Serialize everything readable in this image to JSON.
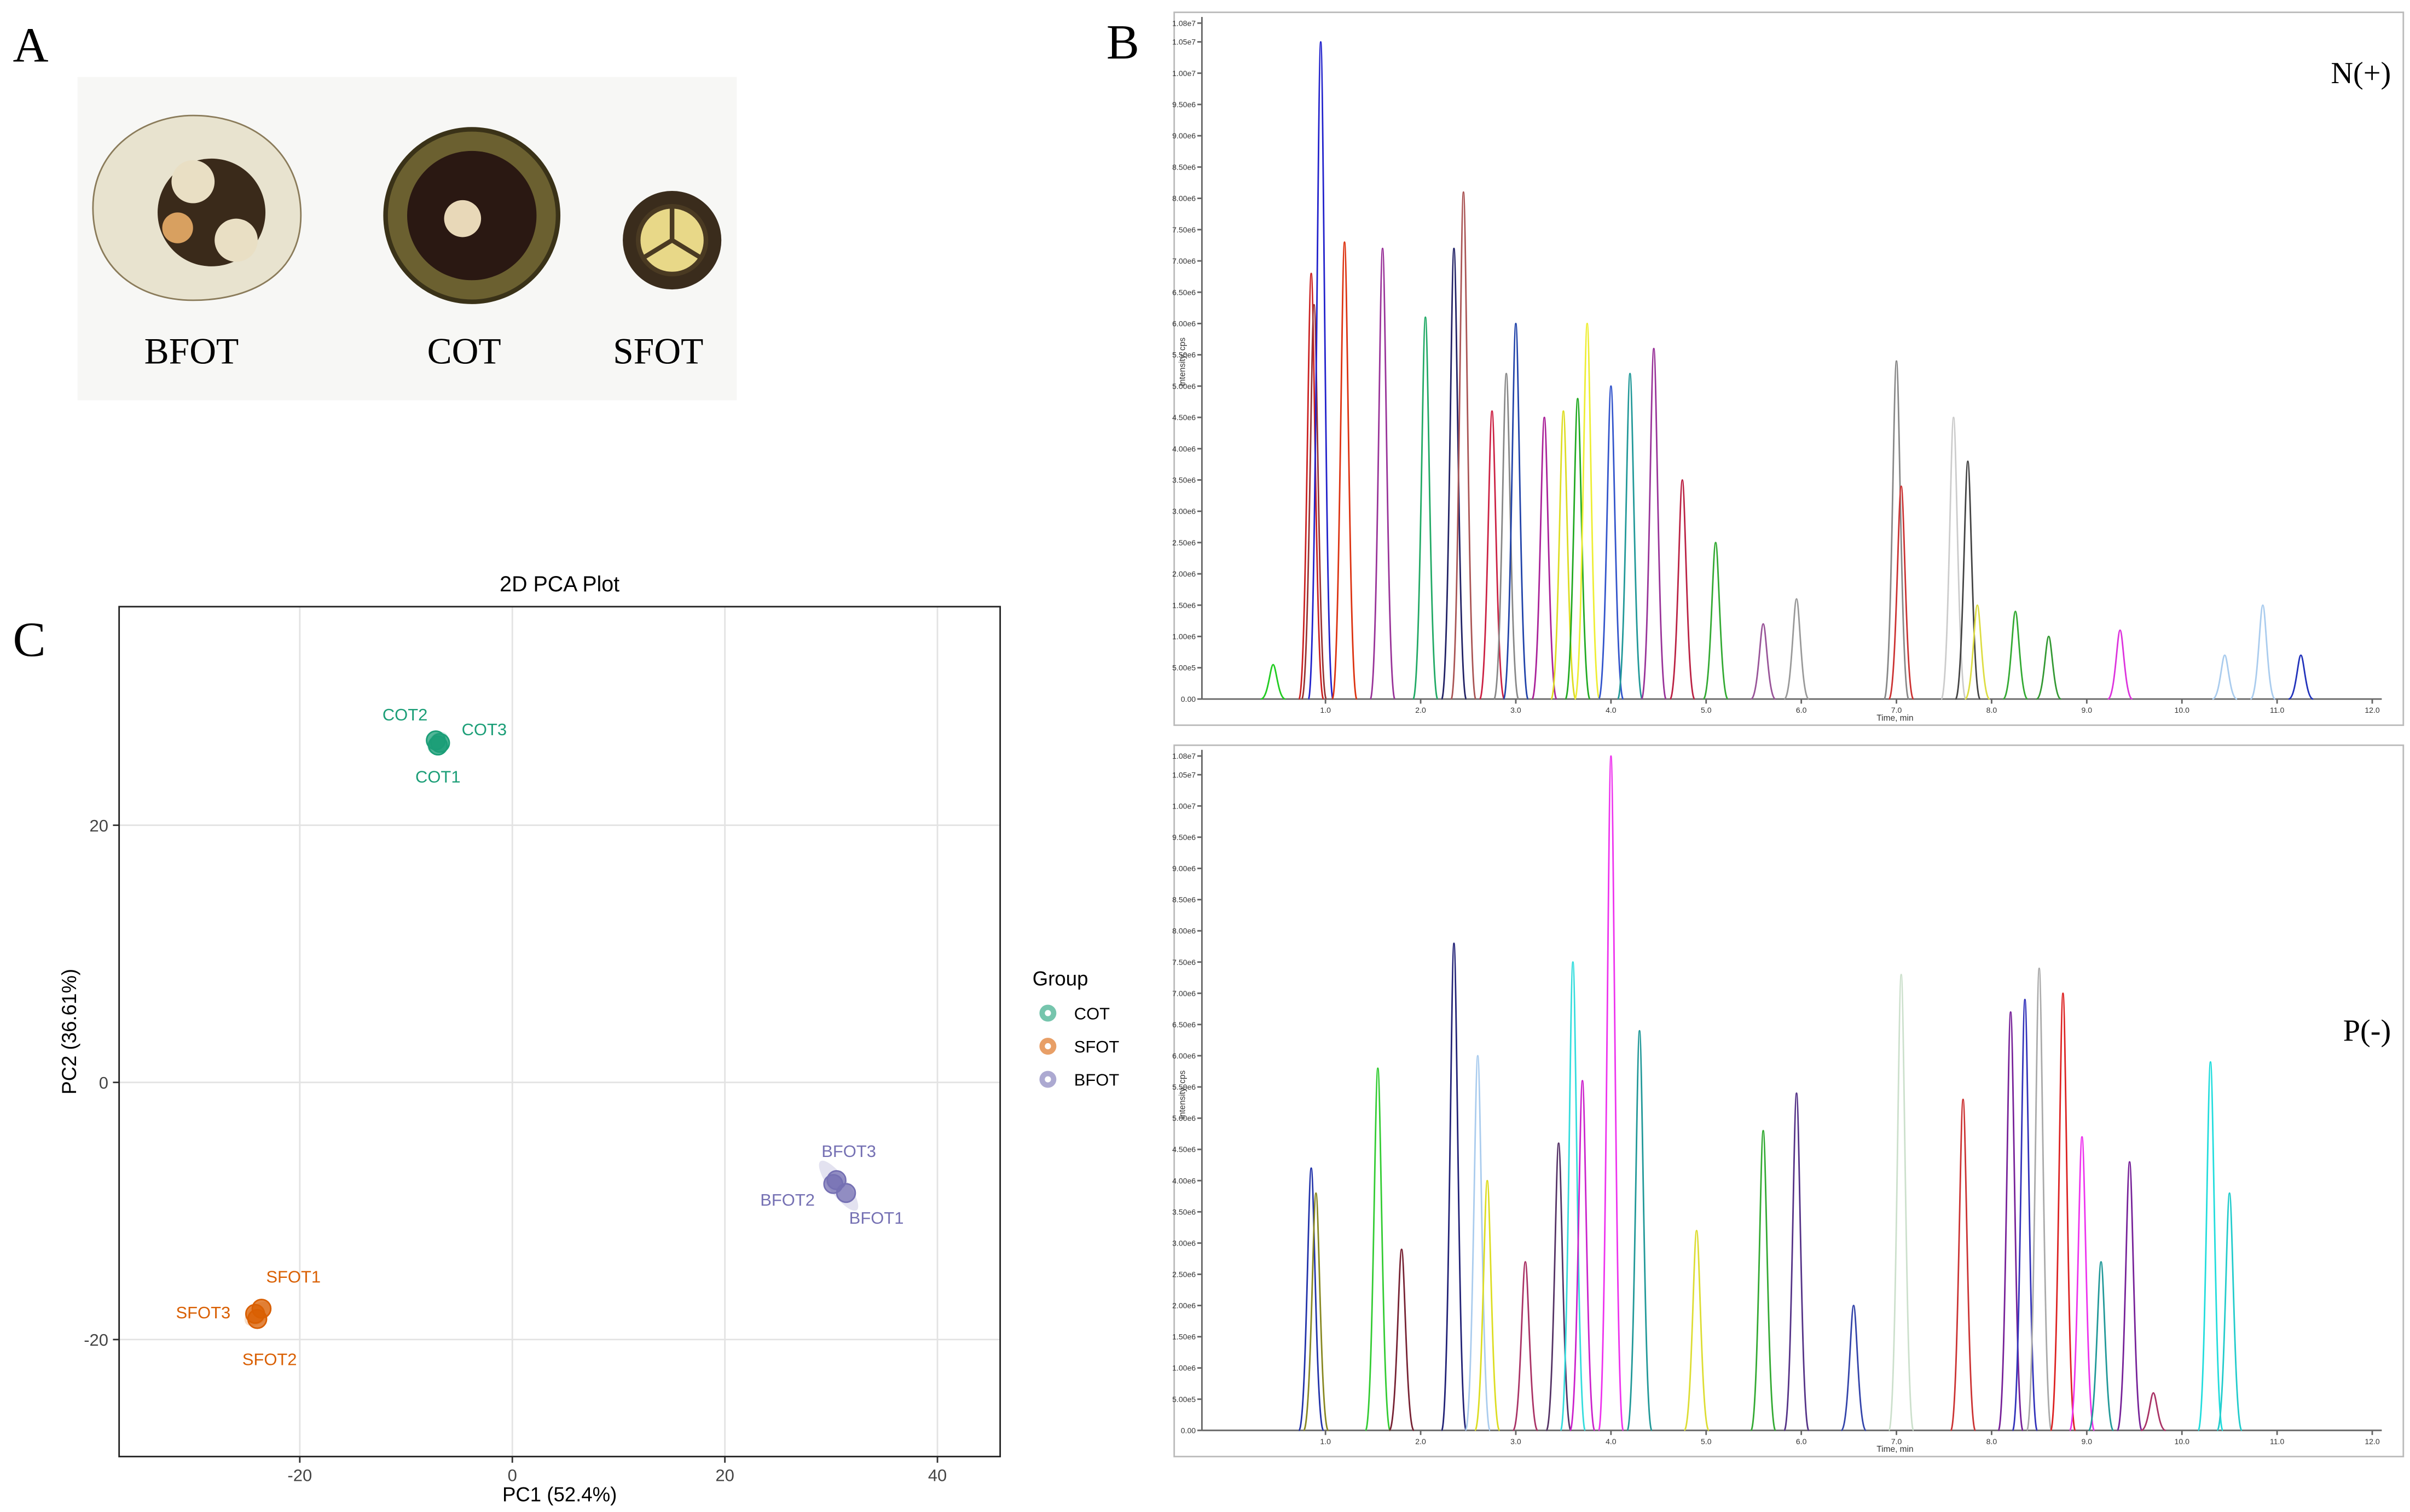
{
  "panels": {
    "a": "A",
    "b": "B",
    "c": "C"
  },
  "photos": {
    "labels": [
      "BFOT",
      "COT",
      "SFOT"
    ]
  },
  "chart_data": [
    {
      "type": "scatter",
      "title": "2D PCA Plot",
      "xlabel": "PC1 (52.4%)",
      "ylabel": "PC2 (36.61%)",
      "xlim": [
        -37,
        45.9
      ],
      "ylim": [
        -29.1,
        37
      ],
      "xticks": [
        -20,
        0,
        20,
        40
      ],
      "yticks": [
        -20,
        0,
        20
      ],
      "grid": true,
      "legend_title": "Group",
      "legend": "right",
      "series": [
        {
          "name": "COT",
          "color": "#1b9e77",
          "x": [
            -7.0,
            -7.2,
            -6.8
          ],
          "values": [
            26.2,
            26.6,
            26.4
          ],
          "point_labels": [
            "COT1",
            "COT2",
            "COT3"
          ]
        },
        {
          "name": "SFOT",
          "color": "#d95f02",
          "x": [
            -23.6,
            -24.0,
            -24.2
          ],
          "values": [
            -17.6,
            -18.4,
            -18.0
          ],
          "point_labels": [
            "SFOT1",
            "SFOT2",
            "SFOT3"
          ]
        },
        {
          "name": "BFOT",
          "color": "#7570b3",
          "x": [
            31.4,
            30.2,
            30.5
          ],
          "values": [
            -8.6,
            -7.9,
            -7.6
          ],
          "point_labels": [
            "BFOT1",
            "BFOT2",
            "BFOT3"
          ]
        }
      ]
    },
    {
      "type": "peaks",
      "annotation": "N(+)",
      "xlabel": "Time, min",
      "ylabel": "Intensity, cps",
      "xlim": [
        -0.25,
        12.1
      ],
      "ylim": [
        0,
        10800000
      ],
      "xticks": [
        {
          "value": 1,
          "label": "1.0"
        },
        {
          "value": 2,
          "label": "2.0"
        },
        {
          "value": 3,
          "label": "3.0"
        },
        {
          "value": 4,
          "label": "4.0"
        },
        {
          "value": 5,
          "label": "5.0"
        },
        {
          "value": 6,
          "label": "6.0"
        },
        {
          "value": 7,
          "label": "7.0"
        },
        {
          "value": 8,
          "label": "8.0"
        },
        {
          "value": 9,
          "label": "9.0"
        },
        {
          "value": 10,
          "label": "10.0"
        },
        {
          "value": 11,
          "label": "11.0"
        },
        {
          "value": 12,
          "label": "12.0"
        }
      ],
      "yticks": [
        {
          "value": 0,
          "label": "0.00"
        },
        {
          "value": 500000,
          "label": "5.00e5"
        },
        {
          "value": 1000000,
          "label": "1.00e6"
        },
        {
          "value": 1500000,
          "label": "1.50e6"
        },
        {
          "value": 2000000,
          "label": "2.00e6"
        },
        {
          "value": 2500000,
          "label": "2.50e6"
        },
        {
          "value": 3000000,
          "label": "3.00e6"
        },
        {
          "value": 3500000,
          "label": "3.50e6"
        },
        {
          "value": 4000000,
          "label": "4.00e6"
        },
        {
          "value": 4500000,
          "label": "4.50e6"
        },
        {
          "value": 5000000,
          "label": "5.00e6"
        },
        {
          "value": 5500000,
          "label": "5.50e6"
        },
        {
          "value": 6000000,
          "label": "6.00e6"
        },
        {
          "value": 6500000,
          "label": "6.50e6"
        },
        {
          "value": 7000000,
          "label": "7.00e6"
        },
        {
          "value": 7500000,
          "label": "7.50e6"
        },
        {
          "value": 8000000,
          "label": "8.00e6"
        },
        {
          "value": 8500000,
          "label": "8.50e6"
        },
        {
          "value": 9000000,
          "label": "9.00e6"
        },
        {
          "value": 9500000,
          "label": "9.50e6"
        },
        {
          "value": 10000000,
          "label": "1.00e7"
        },
        {
          "value": 10500000,
          "label": "1.05e7"
        },
        {
          "value": 10800000,
          "label": "1.08e7"
        }
      ],
      "x": [
        0.45,
        0.85,
        0.88,
        0.95,
        1.2,
        1.6,
        2.05,
        2.35,
        2.45,
        2.75,
        2.9,
        3.0,
        3.3,
        3.5,
        3.65,
        3.75,
        4.0,
        4.2,
        4.45,
        4.75,
        5.1,
        5.6,
        5.95,
        7.0,
        7.05,
        7.6,
        7.75,
        7.85,
        8.25,
        8.6,
        9.35,
        10.45,
        10.85,
        11.25
      ],
      "values": [
        550000,
        6800000,
        6300000,
        10500000,
        7300000,
        7200000,
        6100000,
        7200000,
        8100000,
        4600000,
        5200000,
        6000000,
        4500000,
        4600000,
        4800000,
        6000000,
        5000000,
        5200000,
        5600000,
        3500000,
        2500000,
        1200000,
        1600000,
        5400000,
        3400000,
        4500000,
        3800000,
        1500000,
        1400000,
        1000000,
        1100000,
        700000,
        1500000,
        700000
      ],
      "colors": [
        "#22cc22",
        "#cc2222",
        "#993333",
        "#2222cc",
        "#dd3311",
        "#993399",
        "#22aa66",
        "#222266",
        "#aa5555",
        "#cc2244",
        "#888888",
        "#2244aa",
        "#aa2299",
        "#dddd22",
        "#22aa22",
        "#eeee33",
        "#3355cc",
        "#229999",
        "#993399",
        "#bb2244",
        "#33aa33",
        "#995599",
        "#999999",
        "#888888",
        "#cc3333",
        "#cccccc",
        "#444444",
        "#dddd44",
        "#33aa33",
        "#339933",
        "#dd33dd",
        "#aaccee",
        "#aaccee",
        "#2233bb"
      ]
    },
    {
      "type": "peaks",
      "annotation": "P(-)",
      "xlabel": "Time, min",
      "ylabel": "Intensity, cps",
      "xlim": [
        -0.25,
        12.1
      ],
      "ylim": [
        0,
        10800000
      ],
      "xticks": [
        {
          "value": 1,
          "label": "1.0"
        },
        {
          "value": 2,
          "label": "2.0"
        },
        {
          "value": 3,
          "label": "3.0"
        },
        {
          "value": 4,
          "label": "4.0"
        },
        {
          "value": 5,
          "label": "5.0"
        },
        {
          "value": 6,
          "label": "6.0"
        },
        {
          "value": 7,
          "label": "7.0"
        },
        {
          "value": 8,
          "label": "8.0"
        },
        {
          "value": 9,
          "label": "9.0"
        },
        {
          "value": 10,
          "label": "10.0"
        },
        {
          "value": 11,
          "label": "11.0"
        },
        {
          "value": 12,
          "label": "12.0"
        }
      ],
      "yticks": [
        {
          "value": 0,
          "label": "0.00"
        },
        {
          "value": 500000,
          "label": "5.00e5"
        },
        {
          "value": 1000000,
          "label": "1.00e6"
        },
        {
          "value": 1500000,
          "label": "1.50e6"
        },
        {
          "value": 2000000,
          "label": "2.00e6"
        },
        {
          "value": 2500000,
          "label": "2.50e6"
        },
        {
          "value": 3000000,
          "label": "3.00e6"
        },
        {
          "value": 3500000,
          "label": "3.50e6"
        },
        {
          "value": 4000000,
          "label": "4.00e6"
        },
        {
          "value": 4500000,
          "label": "4.50e6"
        },
        {
          "value": 5000000,
          "label": "5.00e6"
        },
        {
          "value": 5500000,
          "label": "5.50e6"
        },
        {
          "value": 6000000,
          "label": "6.00e6"
        },
        {
          "value": 6500000,
          "label": "6.50e6"
        },
        {
          "value": 7000000,
          "label": "7.00e6"
        },
        {
          "value": 7500000,
          "label": "7.50e6"
        },
        {
          "value": 8000000,
          "label": "8.00e6"
        },
        {
          "value": 8500000,
          "label": "8.50e6"
        },
        {
          "value": 9000000,
          "label": "9.00e6"
        },
        {
          "value": 9500000,
          "label": "9.50e6"
        },
        {
          "value": 10000000,
          "label": "1.00e7"
        },
        {
          "value": 10500000,
          "label": "1.05e7"
        },
        {
          "value": 10800000,
          "label": "1.08e7"
        }
      ],
      "x": [
        0.85,
        0.9,
        1.55,
        1.8,
        2.35,
        2.6,
        2.7,
        3.1,
        3.45,
        3.6,
        3.7,
        4.0,
        4.3,
        4.9,
        5.6,
        5.95,
        6.55,
        7.05,
        7.7,
        8.2,
        8.35,
        8.5,
        8.75,
        8.95,
        9.15,
        9.45,
        9.7,
        10.3,
        10.5
      ],
      "values": [
        4200000,
        3800000,
        5800000,
        2900000,
        7800000,
        6000000,
        4000000,
        2700000,
        4600000,
        7500000,
        5600000,
        10800000,
        6400000,
        3200000,
        4800000,
        5400000,
        2000000,
        7300000,
        5300000,
        6700000,
        6900000,
        7400000,
        7000000,
        4700000,
        2700000,
        4300000,
        600000,
        5900000,
        3800000
      ],
      "colors": [
        "#2233aa",
        "#888822",
        "#33cc33",
        "#772233",
        "#222277",
        "#aaccee",
        "#dddd22",
        "#aa3366",
        "#553366",
        "#33dddd",
        "#cc22cc",
        "#ee33ee",
        "#229999",
        "#dddd33",
        "#33aa33",
        "#553388",
        "#3344aa",
        "#cce0cc",
        "#cc3333",
        "#772299",
        "#3333bb",
        "#aaaaaa",
        "#dd2222",
        "#ee33ee",
        "#229999",
        "#772299",
        "#aa3366",
        "#22dddd",
        "#22cccc"
      ]
    }
  ]
}
